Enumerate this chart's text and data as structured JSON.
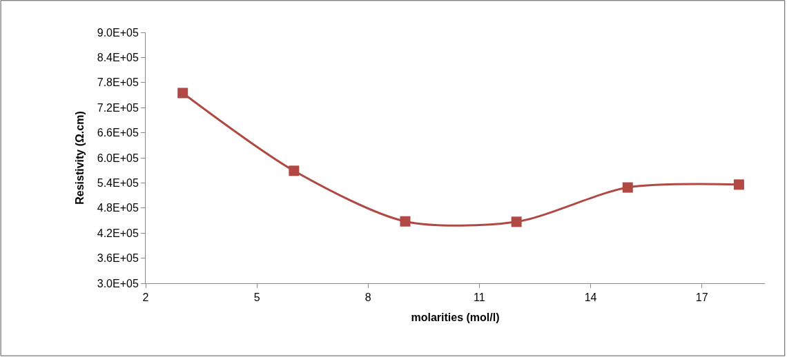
{
  "chart_data": {
    "type": "line",
    "xlabel": "molarities (mol/l)",
    "ylabel": "Resistivity (Ω.cm)",
    "x": [
      3,
      6,
      9,
      12,
      15,
      18
    ],
    "series": [
      {
        "color": "#b04844",
        "values": [
          755000,
          569000,
          448000,
          447000,
          529000,
          536000
        ]
      }
    ],
    "xlim": [
      2,
      18.7
    ],
    "xticks": [
      2,
      5,
      8,
      11,
      14,
      17
    ],
    "ylim": [
      300000,
      900000
    ],
    "yticks": [
      {
        "value": 300000,
        "label": "3.0E+05"
      },
      {
        "value": 360000,
        "label": "3.6E+05"
      },
      {
        "value": 420000,
        "label": "4.2E+05"
      },
      {
        "value": 480000,
        "label": "4.8E+05"
      },
      {
        "value": 540000,
        "label": "5.4E+05"
      },
      {
        "value": 600000,
        "label": "6.0E+05"
      },
      {
        "value": 660000,
        "label": "6.6E+05"
      },
      {
        "value": 720000,
        "label": "7.2E+05"
      },
      {
        "value": 780000,
        "label": "7.8E+05"
      },
      {
        "value": 840000,
        "label": "8.4E+05"
      },
      {
        "value": 900000,
        "label": "9.0E+05"
      }
    ],
    "grid": false,
    "marker": "square",
    "line_style": "solid"
  }
}
